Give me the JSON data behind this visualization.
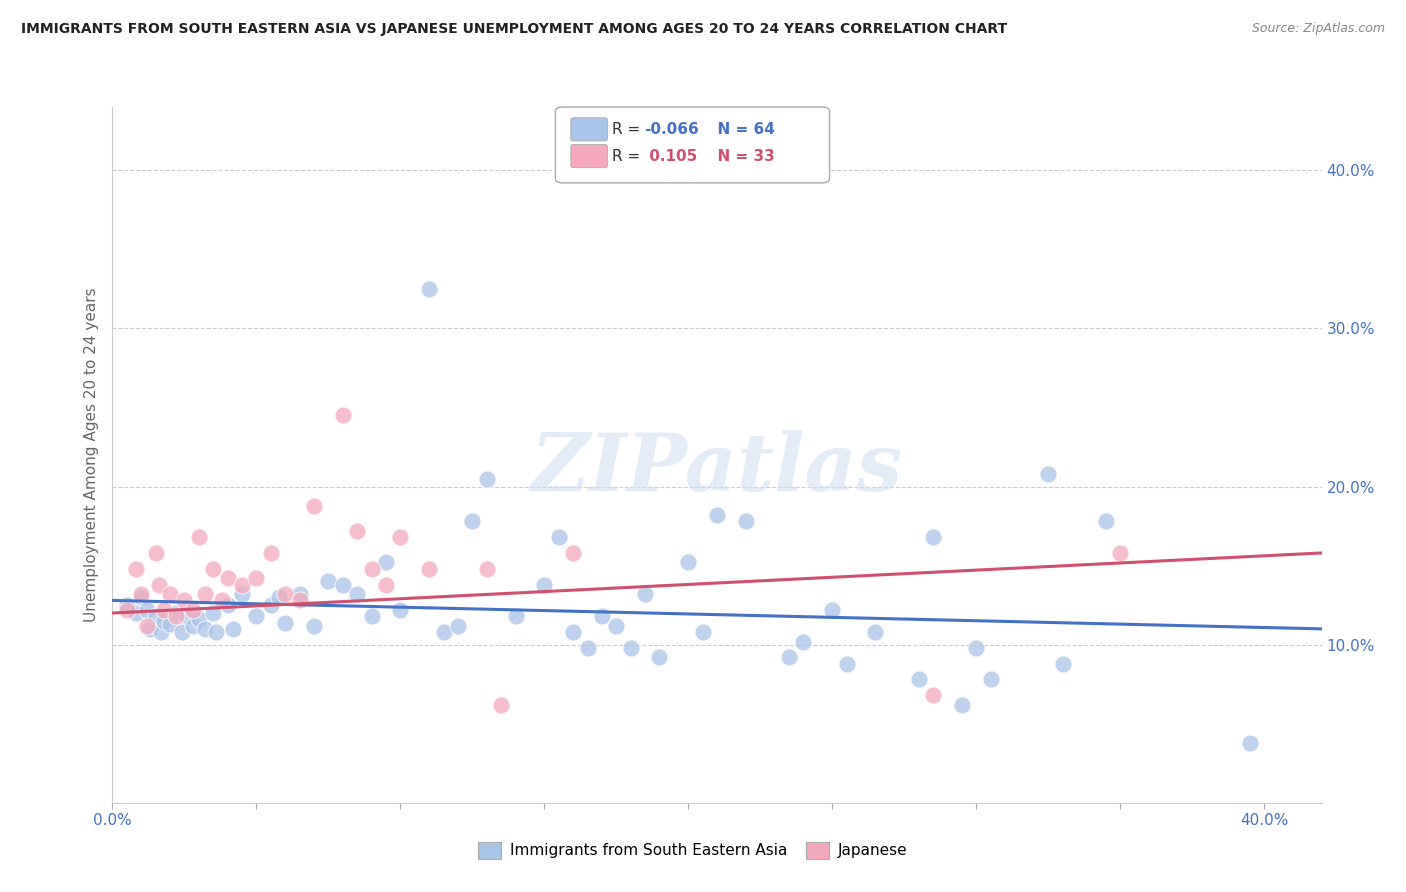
{
  "title": "IMMIGRANTS FROM SOUTH EASTERN ASIA VS JAPANESE UNEMPLOYMENT AMONG AGES 20 TO 24 YEARS CORRELATION CHART",
  "source": "Source: ZipAtlas.com",
  "ylabel": "Unemployment Among Ages 20 to 24 years",
  "xlim": [
    0.0,
    0.42
  ],
  "ylim": [
    0.0,
    0.44
  ],
  "yticks": [
    0.1,
    0.2,
    0.3,
    0.4
  ],
  "ytick_labels": [
    "10.0%",
    "20.0%",
    "30.0%",
    "40.0%"
  ],
  "blue_color": "#a8c4e8",
  "pink_color": "#f4a8bc",
  "blue_line_color": "#4472c4",
  "pink_line_color": "#d05070",
  "tick_label_color": "#4472c4",
  "blue_scatter": [
    [
      0.005,
      0.125
    ],
    [
      0.008,
      0.12
    ],
    [
      0.01,
      0.13
    ],
    [
      0.012,
      0.122
    ],
    [
      0.013,
      0.11
    ],
    [
      0.015,
      0.118
    ],
    [
      0.017,
      0.108
    ],
    [
      0.018,
      0.115
    ],
    [
      0.02,
      0.113
    ],
    [
      0.022,
      0.12
    ],
    [
      0.024,
      0.108
    ],
    [
      0.026,
      0.118
    ],
    [
      0.028,
      0.112
    ],
    [
      0.03,
      0.116
    ],
    [
      0.032,
      0.11
    ],
    [
      0.035,
      0.12
    ],
    [
      0.036,
      0.108
    ],
    [
      0.04,
      0.125
    ],
    [
      0.042,
      0.11
    ],
    [
      0.045,
      0.132
    ],
    [
      0.05,
      0.118
    ],
    [
      0.055,
      0.125
    ],
    [
      0.058,
      0.13
    ],
    [
      0.06,
      0.114
    ],
    [
      0.065,
      0.132
    ],
    [
      0.07,
      0.112
    ],
    [
      0.075,
      0.14
    ],
    [
      0.08,
      0.138
    ],
    [
      0.085,
      0.132
    ],
    [
      0.09,
      0.118
    ],
    [
      0.095,
      0.152
    ],
    [
      0.1,
      0.122
    ],
    [
      0.11,
      0.325
    ],
    [
      0.115,
      0.108
    ],
    [
      0.12,
      0.112
    ],
    [
      0.125,
      0.178
    ],
    [
      0.13,
      0.205
    ],
    [
      0.14,
      0.118
    ],
    [
      0.15,
      0.138
    ],
    [
      0.155,
      0.168
    ],
    [
      0.16,
      0.108
    ],
    [
      0.165,
      0.098
    ],
    [
      0.17,
      0.118
    ],
    [
      0.175,
      0.112
    ],
    [
      0.18,
      0.098
    ],
    [
      0.185,
      0.132
    ],
    [
      0.19,
      0.092
    ],
    [
      0.2,
      0.152
    ],
    [
      0.205,
      0.108
    ],
    [
      0.21,
      0.182
    ],
    [
      0.22,
      0.178
    ],
    [
      0.235,
      0.092
    ],
    [
      0.24,
      0.102
    ],
    [
      0.25,
      0.122
    ],
    [
      0.255,
      0.088
    ],
    [
      0.265,
      0.108
    ],
    [
      0.28,
      0.078
    ],
    [
      0.285,
      0.168
    ],
    [
      0.295,
      0.062
    ],
    [
      0.3,
      0.098
    ],
    [
      0.305,
      0.078
    ],
    [
      0.325,
      0.208
    ],
    [
      0.33,
      0.088
    ],
    [
      0.345,
      0.178
    ],
    [
      0.395,
      0.038
    ]
  ],
  "pink_scatter": [
    [
      0.005,
      0.122
    ],
    [
      0.008,
      0.148
    ],
    [
      0.01,
      0.132
    ],
    [
      0.012,
      0.112
    ],
    [
      0.015,
      0.158
    ],
    [
      0.016,
      0.138
    ],
    [
      0.018,
      0.122
    ],
    [
      0.02,
      0.132
    ],
    [
      0.022,
      0.118
    ],
    [
      0.025,
      0.128
    ],
    [
      0.028,
      0.122
    ],
    [
      0.03,
      0.168
    ],
    [
      0.032,
      0.132
    ],
    [
      0.035,
      0.148
    ],
    [
      0.038,
      0.128
    ],
    [
      0.04,
      0.142
    ],
    [
      0.045,
      0.138
    ],
    [
      0.05,
      0.142
    ],
    [
      0.055,
      0.158
    ],
    [
      0.06,
      0.132
    ],
    [
      0.065,
      0.128
    ],
    [
      0.07,
      0.188
    ],
    [
      0.08,
      0.245
    ],
    [
      0.085,
      0.172
    ],
    [
      0.09,
      0.148
    ],
    [
      0.095,
      0.138
    ],
    [
      0.1,
      0.168
    ],
    [
      0.11,
      0.148
    ],
    [
      0.13,
      0.148
    ],
    [
      0.135,
      0.062
    ],
    [
      0.16,
      0.158
    ],
    [
      0.285,
      0.068
    ],
    [
      0.35,
      0.158
    ]
  ],
  "blue_trendline": [
    [
      0.0,
      0.128
    ],
    [
      0.42,
      0.11
    ]
  ],
  "pink_trendline": [
    [
      0.0,
      0.12
    ],
    [
      0.42,
      0.158
    ]
  ],
  "watermark": "ZIPatlas",
  "background_color": "#ffffff",
  "grid_color": "#cccccc"
}
